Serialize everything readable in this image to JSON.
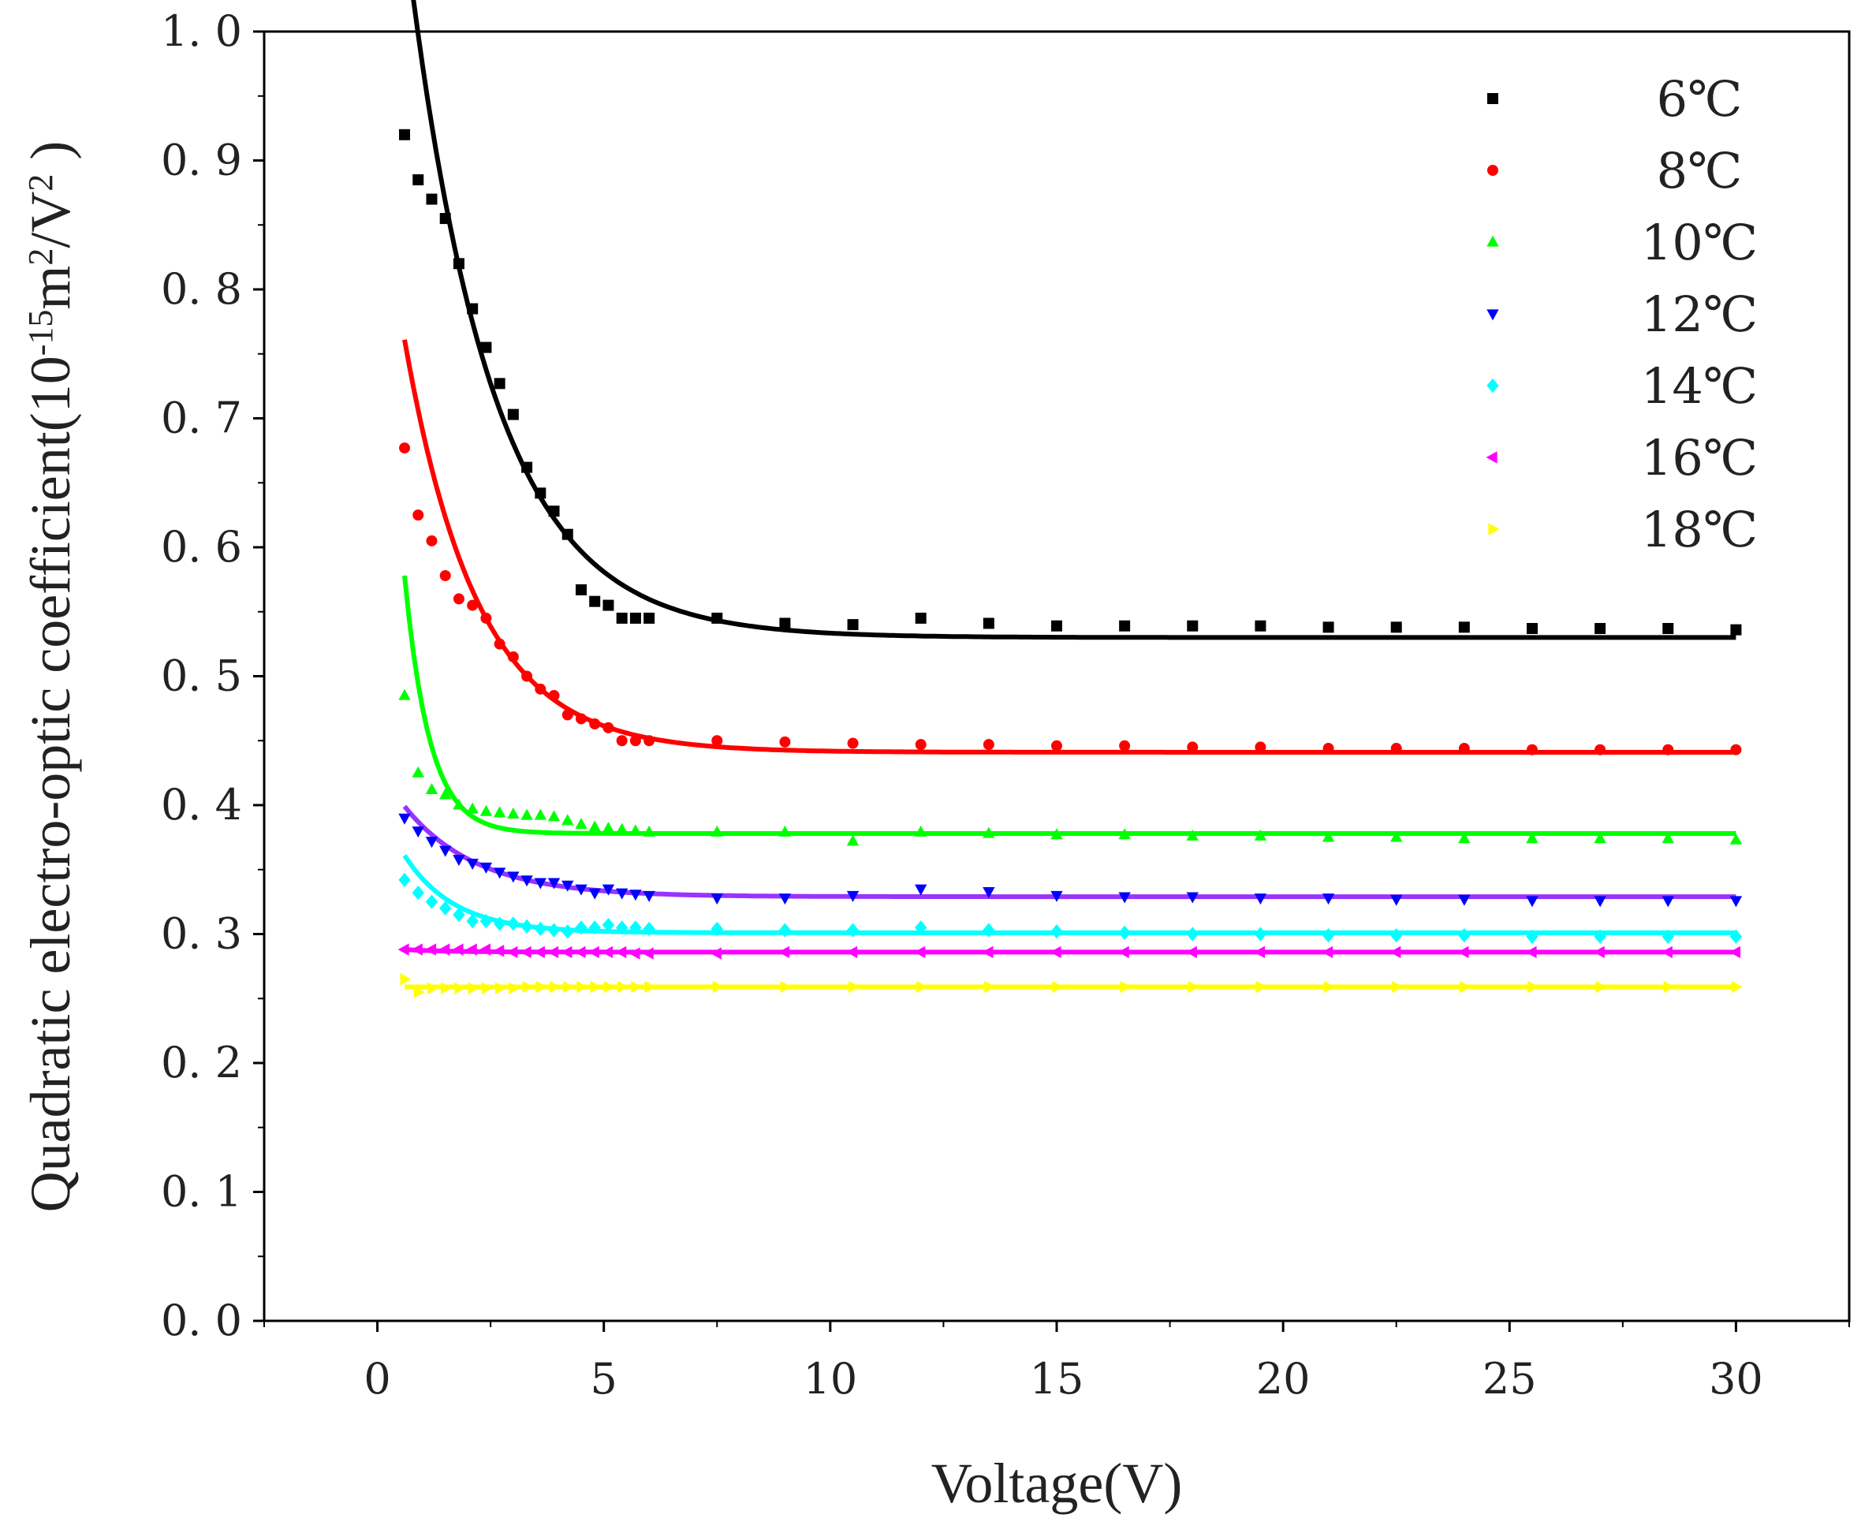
{
  "chart_data": {
    "type": "scatter",
    "title": "",
    "xlabel": "Voltage(V)",
    "ylabel": "Quadratic electro-optic coefficient(10",
    "ylabel_exp1": "-15",
    "ylabel_mid": "m",
    "ylabel_exp2": "2",
    "ylabel_mid2": "/V",
    "ylabel_exp3": "2",
    "ylabel_end": " )",
    "xlim": [
      -2.5,
      32.5
    ],
    "ylim": [
      0,
      1.0
    ],
    "xticks": [
      0,
      5,
      10,
      15,
      20,
      25,
      30
    ],
    "xtick_labels": [
      "0",
      "5",
      "10",
      "15",
      "20",
      "25",
      "30"
    ],
    "yticks": [
      0,
      0.1,
      0.2,
      0.3,
      0.4,
      0.5,
      0.6,
      0.7,
      0.8,
      0.9,
      1.0
    ],
    "ytick_labels": [
      "0. 0",
      "0. 1",
      "0. 2",
      "0. 3",
      "0. 4",
      "0. 5",
      "0. 6",
      "0. 7",
      "0. 8",
      "0. 9",
      "1. 0"
    ],
    "grid": false,
    "legend_position": "top-right",
    "series": [
      {
        "name": "6℃",
        "color": "#000000",
        "marker": "square",
        "fit_color": "#000000",
        "x": [
          0.6,
          0.9,
          1.2,
          1.5,
          1.8,
          2.1,
          2.4,
          2.7,
          3.0,
          3.3,
          3.6,
          3.9,
          4.2,
          4.5,
          4.8,
          5.1,
          5.4,
          5.7,
          6.0,
          7.5,
          9.0,
          10.5,
          12.0,
          13.5,
          15.0,
          16.5,
          18.0,
          19.5,
          21.0,
          22.5,
          24.0,
          25.5,
          27.0,
          28.5,
          30.0
        ],
        "y": [
          0.92,
          0.885,
          0.87,
          0.855,
          0.82,
          0.785,
          0.755,
          0.727,
          0.703,
          0.662,
          0.642,
          0.628,
          0.61,
          0.567,
          0.558,
          0.555,
          0.545,
          0.545,
          0.545,
          0.545,
          0.541,
          0.54,
          0.545,
          0.541,
          0.539,
          0.539,
          0.539,
          0.539,
          0.538,
          0.538,
          0.538,
          0.537,
          0.537,
          0.537,
          0.536
        ],
        "fit": {
          "y0": 0.53,
          "A": 0.55,
          "t": 1.85
        }
      },
      {
        "name": "8℃",
        "color": "#ff0000",
        "marker": "circle",
        "fit_color": "#ff0000",
        "x": [
          0.6,
          0.9,
          1.2,
          1.5,
          1.8,
          2.1,
          2.4,
          2.7,
          3.0,
          3.3,
          3.6,
          3.9,
          4.2,
          4.5,
          4.8,
          5.1,
          5.4,
          5.7,
          6.0,
          7.5,
          9.0,
          10.5,
          12.0,
          13.5,
          15.0,
          16.5,
          18.0,
          19.5,
          21.0,
          22.5,
          24.0,
          25.5,
          27.0,
          28.5,
          30.0
        ],
        "y": [
          0.677,
          0.625,
          0.605,
          0.578,
          0.56,
          0.555,
          0.545,
          0.525,
          0.515,
          0.5,
          0.49,
          0.485,
          0.47,
          0.467,
          0.463,
          0.46,
          0.45,
          0.45,
          0.45,
          0.45,
          0.449,
          0.448,
          0.447,
          0.447,
          0.446,
          0.446,
          0.445,
          0.445,
          0.444,
          0.444,
          0.444,
          0.443,
          0.443,
          0.443,
          0.443
        ],
        "fit": {
          "y0": 0.441,
          "A": 0.32,
          "t": 1.6
        }
      },
      {
        "name": "10℃",
        "color": "#00ff00",
        "marker": "triangle-up",
        "fit_color": "#00ff00",
        "x": [
          0.6,
          0.9,
          1.2,
          1.5,
          1.8,
          2.1,
          2.4,
          2.7,
          3.0,
          3.3,
          3.6,
          3.9,
          4.2,
          4.5,
          4.8,
          5.1,
          5.4,
          5.7,
          6.0,
          7.5,
          9.0,
          10.5,
          12.0,
          13.5,
          15.0,
          16.5,
          18.0,
          19.5,
          21.0,
          22.5,
          24.0,
          25.5,
          27.0,
          28.5,
          30.0
        ],
        "y": [
          0.485,
          0.425,
          0.412,
          0.408,
          0.4,
          0.397,
          0.395,
          0.394,
          0.393,
          0.392,
          0.392,
          0.391,
          0.388,
          0.385,
          0.383,
          0.382,
          0.381,
          0.38,
          0.379,
          0.379,
          0.379,
          0.372,
          0.379,
          0.378,
          0.377,
          0.377,
          0.376,
          0.376,
          0.375,
          0.375,
          0.374,
          0.374,
          0.374,
          0.374,
          0.373
        ],
        "fit": {
          "y0": 0.378,
          "A": 0.2,
          "t": 0.55
        }
      },
      {
        "name": "12℃",
        "color": "#0000ff",
        "marker": "triangle-down",
        "fit_color": "#9933ff",
        "x": [
          0.6,
          0.9,
          1.2,
          1.5,
          1.8,
          2.1,
          2.4,
          2.7,
          3.0,
          3.3,
          3.6,
          3.9,
          4.2,
          4.5,
          4.8,
          5.1,
          5.4,
          5.7,
          6.0,
          7.5,
          9.0,
          10.5,
          12.0,
          13.5,
          15.0,
          16.5,
          18.0,
          19.5,
          21.0,
          22.5,
          24.0,
          25.5,
          27.0,
          28.5,
          30.0
        ],
        "y": [
          0.39,
          0.38,
          0.372,
          0.365,
          0.358,
          0.355,
          0.352,
          0.348,
          0.345,
          0.342,
          0.34,
          0.34,
          0.338,
          0.335,
          0.332,
          0.335,
          0.332,
          0.331,
          0.33,
          0.328,
          0.328,
          0.33,
          0.335,
          0.333,
          0.33,
          0.329,
          0.329,
          0.328,
          0.328,
          0.327,
          0.327,
          0.326,
          0.326,
          0.326,
          0.326
        ],
        "fit": {
          "y0": 0.329,
          "A": 0.07,
          "t": 1.6
        }
      },
      {
        "name": "14℃",
        "color": "#00ffff",
        "marker": "diamond",
        "fit_color": "#00ffff",
        "x": [
          0.6,
          0.9,
          1.2,
          1.5,
          1.8,
          2.1,
          2.4,
          2.7,
          3.0,
          3.3,
          3.6,
          3.9,
          4.2,
          4.5,
          4.8,
          5.1,
          5.4,
          5.7,
          6.0,
          7.5,
          9.0,
          10.5,
          12.0,
          13.5,
          15.0,
          16.5,
          18.0,
          19.5,
          21.0,
          22.5,
          24.0,
          25.5,
          27.0,
          28.5,
          30.0
        ],
        "y": [
          0.342,
          0.332,
          0.325,
          0.32,
          0.315,
          0.31,
          0.31,
          0.308,
          0.308,
          0.306,
          0.304,
          0.303,
          0.302,
          0.305,
          0.305,
          0.307,
          0.305,
          0.305,
          0.304,
          0.304,
          0.303,
          0.303,
          0.305,
          0.303,
          0.302,
          0.301,
          0.3,
          0.3,
          0.299,
          0.299,
          0.299,
          0.298,
          0.298,
          0.298,
          0.298
        ],
        "fit": {
          "y0": 0.301,
          "A": 0.06,
          "t": 1.1
        }
      },
      {
        "name": "16℃",
        "color": "#ff00ff",
        "marker": "triangle-left",
        "fit_color": "#ff00ff",
        "x": [
          0.6,
          0.9,
          1.2,
          1.5,
          1.8,
          2.1,
          2.4,
          2.7,
          3.0,
          3.3,
          3.6,
          3.9,
          4.2,
          4.5,
          4.8,
          5.1,
          5.4,
          5.7,
          6.0,
          7.5,
          9.0,
          10.5,
          12.0,
          13.5,
          15.0,
          16.5,
          18.0,
          19.5,
          21.0,
          22.5,
          24.0,
          25.5,
          27.0,
          28.5,
          30.0
        ],
        "y": [
          0.288,
          0.288,
          0.288,
          0.288,
          0.288,
          0.288,
          0.288,
          0.287,
          0.286,
          0.286,
          0.286,
          0.286,
          0.286,
          0.286,
          0.286,
          0.286,
          0.286,
          0.285,
          0.285,
          0.285,
          0.286,
          0.286,
          0.286,
          0.286,
          0.286,
          0.286,
          0.286,
          0.286,
          0.286,
          0.286,
          0.286,
          0.286,
          0.286,
          0.286,
          0.286
        ],
        "fit": {
          "y0": 0.286,
          "A": 0.002,
          "t": 1.0
        }
      },
      {
        "name": "18℃",
        "color": "#ffff00",
        "marker": "triangle-right",
        "fit_color": "#ffff00",
        "x": [
          0.6,
          0.9,
          1.2,
          1.5,
          1.8,
          2.1,
          2.4,
          2.7,
          3.0,
          3.3,
          3.6,
          3.9,
          4.2,
          4.5,
          4.8,
          5.1,
          5.4,
          5.7,
          6.0,
          7.5,
          9.0,
          10.5,
          12.0,
          13.5,
          15.0,
          16.5,
          18.0,
          19.5,
          21.0,
          22.5,
          24.0,
          25.5,
          27.0,
          28.5,
          30.0
        ],
        "y": [
          0.265,
          0.255,
          0.258,
          0.258,
          0.258,
          0.258,
          0.258,
          0.258,
          0.258,
          0.259,
          0.259,
          0.259,
          0.259,
          0.259,
          0.259,
          0.259,
          0.259,
          0.259,
          0.259,
          0.259,
          0.259,
          0.259,
          0.259,
          0.259,
          0.259,
          0.259,
          0.259,
          0.259,
          0.259,
          0.259,
          0.259,
          0.259,
          0.259,
          0.259,
          0.259
        ],
        "fit": {
          "y0": 0.259,
          "A": 0.0,
          "t": 1.0
        }
      }
    ]
  }
}
